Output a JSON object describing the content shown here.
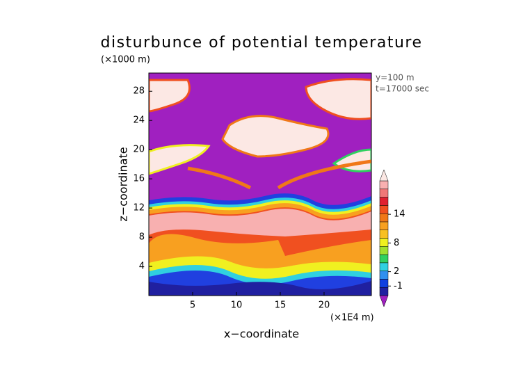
{
  "chart_data": {
    "type": "contour",
    "title": "disturbunce of potential temperature",
    "y_unit_label": "(×1000 m)",
    "x_unit_label": "(×1E4 m)",
    "annotations": [
      "y=100 m",
      "t=17000 sec"
    ],
    "xlabel": "x−coordinate",
    "ylabel": "z−coordinate",
    "xlim": [
      0,
      25.4
    ],
    "xticks": [
      5,
      10,
      15,
      20
    ],
    "ylim": [
      0,
      30.5
    ],
    "yticks": [
      4,
      8,
      12,
      16,
      20,
      24,
      28
    ],
    "colorbar": {
      "clim": [
        -3,
        21
      ],
      "ticks": [
        -1,
        2,
        8,
        14
      ],
      "colors": [
        "#2020a0",
        "#1040e0",
        "#3090f0",
        "#30d0e0",
        "#30d060",
        "#a0e030",
        "#f0f020",
        "#f8c020",
        "#f8a020",
        "#f07818",
        "#f05020",
        "#e02030",
        "#f07878",
        "#f8b0b0"
      ],
      "under_color": "#a020c0",
      "over_color": "#fce8e4"
    }
  }
}
